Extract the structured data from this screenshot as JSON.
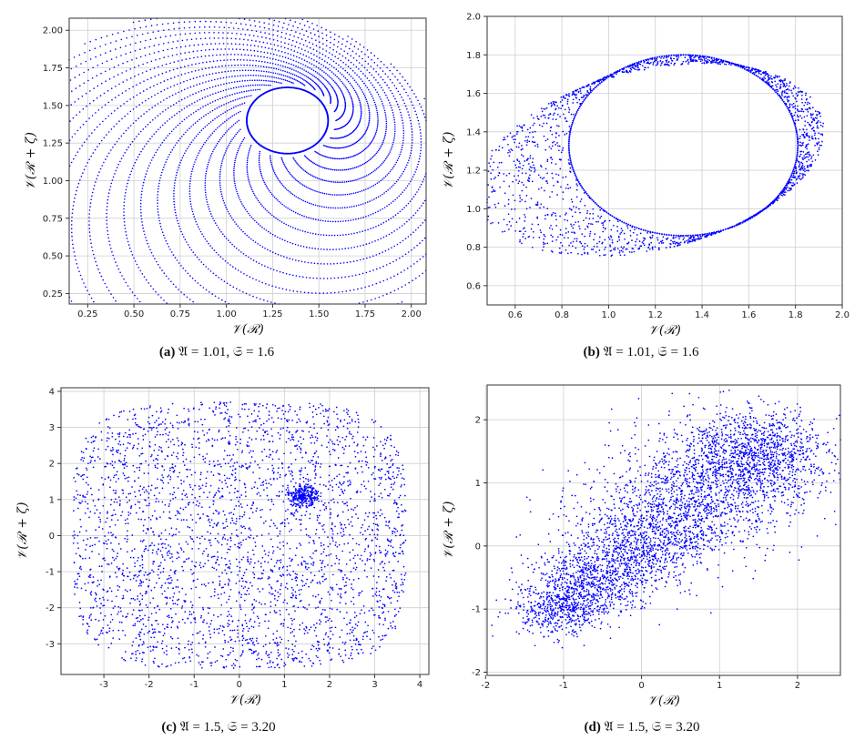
{
  "chart_data": [
    {
      "id": "a",
      "type": "scatter",
      "xlabel": "𝒱(ℛ)",
      "ylabel": "𝒱(ℛ + ζ)",
      "xlim": [
        0.15,
        2.08
      ],
      "ylim": [
        0.18,
        2.08
      ],
      "xticks": [
        "0.25",
        "0.50",
        "0.75",
        "1.00",
        "1.25",
        "1.50",
        "1.75",
        "2.00"
      ],
      "yticks": [
        "0.25",
        "0.50",
        "0.75",
        "1.00",
        "1.25",
        "1.50",
        "1.75",
        "2.00"
      ],
      "grid": true,
      "pattern": "spiral",
      "series": [
        {
          "color": "#0000ff",
          "shape": "spiral attractor around hole centered (1.33, 1.40), outer radius ~0.95"
        }
      ],
      "caption_label": "(a)",
      "caption_text": "𝔄 = 1.01, 𝔖 = 1.6"
    },
    {
      "id": "b",
      "type": "scatter",
      "xlabel": "𝒱(ℛ)",
      "ylabel": "𝒱(ℛ + ζ)",
      "xlim": [
        0.48,
        2.0
      ],
      "ylim": [
        0.5,
        2.0
      ],
      "xticks": [
        "0.6",
        "0.8",
        "1.0",
        "1.2",
        "1.4",
        "1.6",
        "1.8",
        "2.0"
      ],
      "yticks": [
        "0.6",
        "0.8",
        "1.0",
        "1.2",
        "1.4",
        "1.6",
        "1.8",
        "2.0"
      ],
      "grid": true,
      "pattern": "torus",
      "series": [
        {
          "color": "#0000ff",
          "shape": "torus ring, inner hole from x 0.86–1.82, y 0.87–1.80"
        }
      ],
      "caption_label": "(b)",
      "caption_text": "𝔄 = 1.01, 𝔖 = 1.6"
    },
    {
      "id": "c",
      "type": "scatter",
      "xlabel": "𝒱(ℛ)",
      "ylabel": "𝒱(ℛ + ζ)",
      "xlim": [
        -3.95,
        4.2
      ],
      "ylim": [
        -3.85,
        4.1
      ],
      "xticks": [
        "-3",
        "-2",
        "-1",
        "0",
        "1",
        "2",
        "3",
        "4"
      ],
      "yticks": [
        "-3",
        "-2",
        "-1",
        "0",
        "1",
        "2",
        "3",
        "4"
      ],
      "grid": true,
      "pattern": "chaotic-square",
      "series": [
        {
          "color": "#0000ff",
          "shape": "rounded-square chaotic cloud, x ±3.7, y ±3.7, spiral center (1.4, 1.1)"
        }
      ],
      "caption_label": "(c)",
      "caption_text": "𝔄 = 1.5, 𝔖 = 3.20"
    },
    {
      "id": "d",
      "type": "scatter",
      "xlabel": "𝒱(ℛ)",
      "ylabel": "𝒱(ℛ + ζ)",
      "xlim": [
        -1.98,
        2.55
      ],
      "ylim": [
        -2.05,
        2.55
      ],
      "xticks": [
        "-2",
        "-1",
        "0",
        "1",
        "2"
      ],
      "yticks": [
        "-2",
        "-1",
        "0",
        "1",
        "2"
      ],
      "grid": true,
      "pattern": "chaotic-diagonal",
      "series": [
        {
          "color": "#0000ff",
          "shape": "diagonal chaotic cloud from (-1.2,-1.2) to (1.4,1.5), dense lobe near (1.4,1.5)"
        }
      ],
      "caption_label": "(d)",
      "caption_text": "𝔄 = 1.5, 𝔖 = 3.20"
    }
  ]
}
